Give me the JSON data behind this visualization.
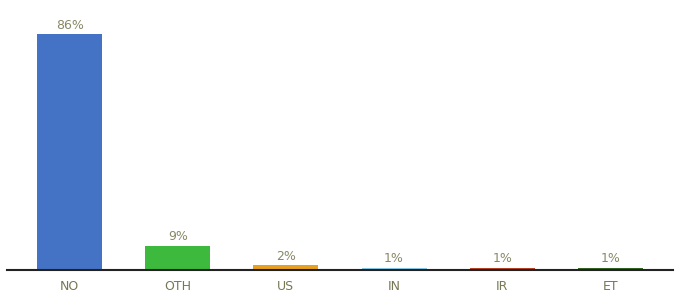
{
  "categories": [
    "NO",
    "OTH",
    "US",
    "IN",
    "IR",
    "ET"
  ],
  "values": [
    86,
    9,
    2,
    1,
    1,
    1
  ],
  "labels": [
    "86%",
    "9%",
    "2%",
    "1%",
    "1%",
    "1%"
  ],
  "bar_colors": [
    "#4472c4",
    "#3dba3d",
    "#e8a020",
    "#88ccee",
    "#bb4422",
    "#336622"
  ],
  "ylim": [
    0,
    96
  ],
  "label_fontsize": 9,
  "tick_fontsize": 9,
  "background_color": "#ffffff"
}
